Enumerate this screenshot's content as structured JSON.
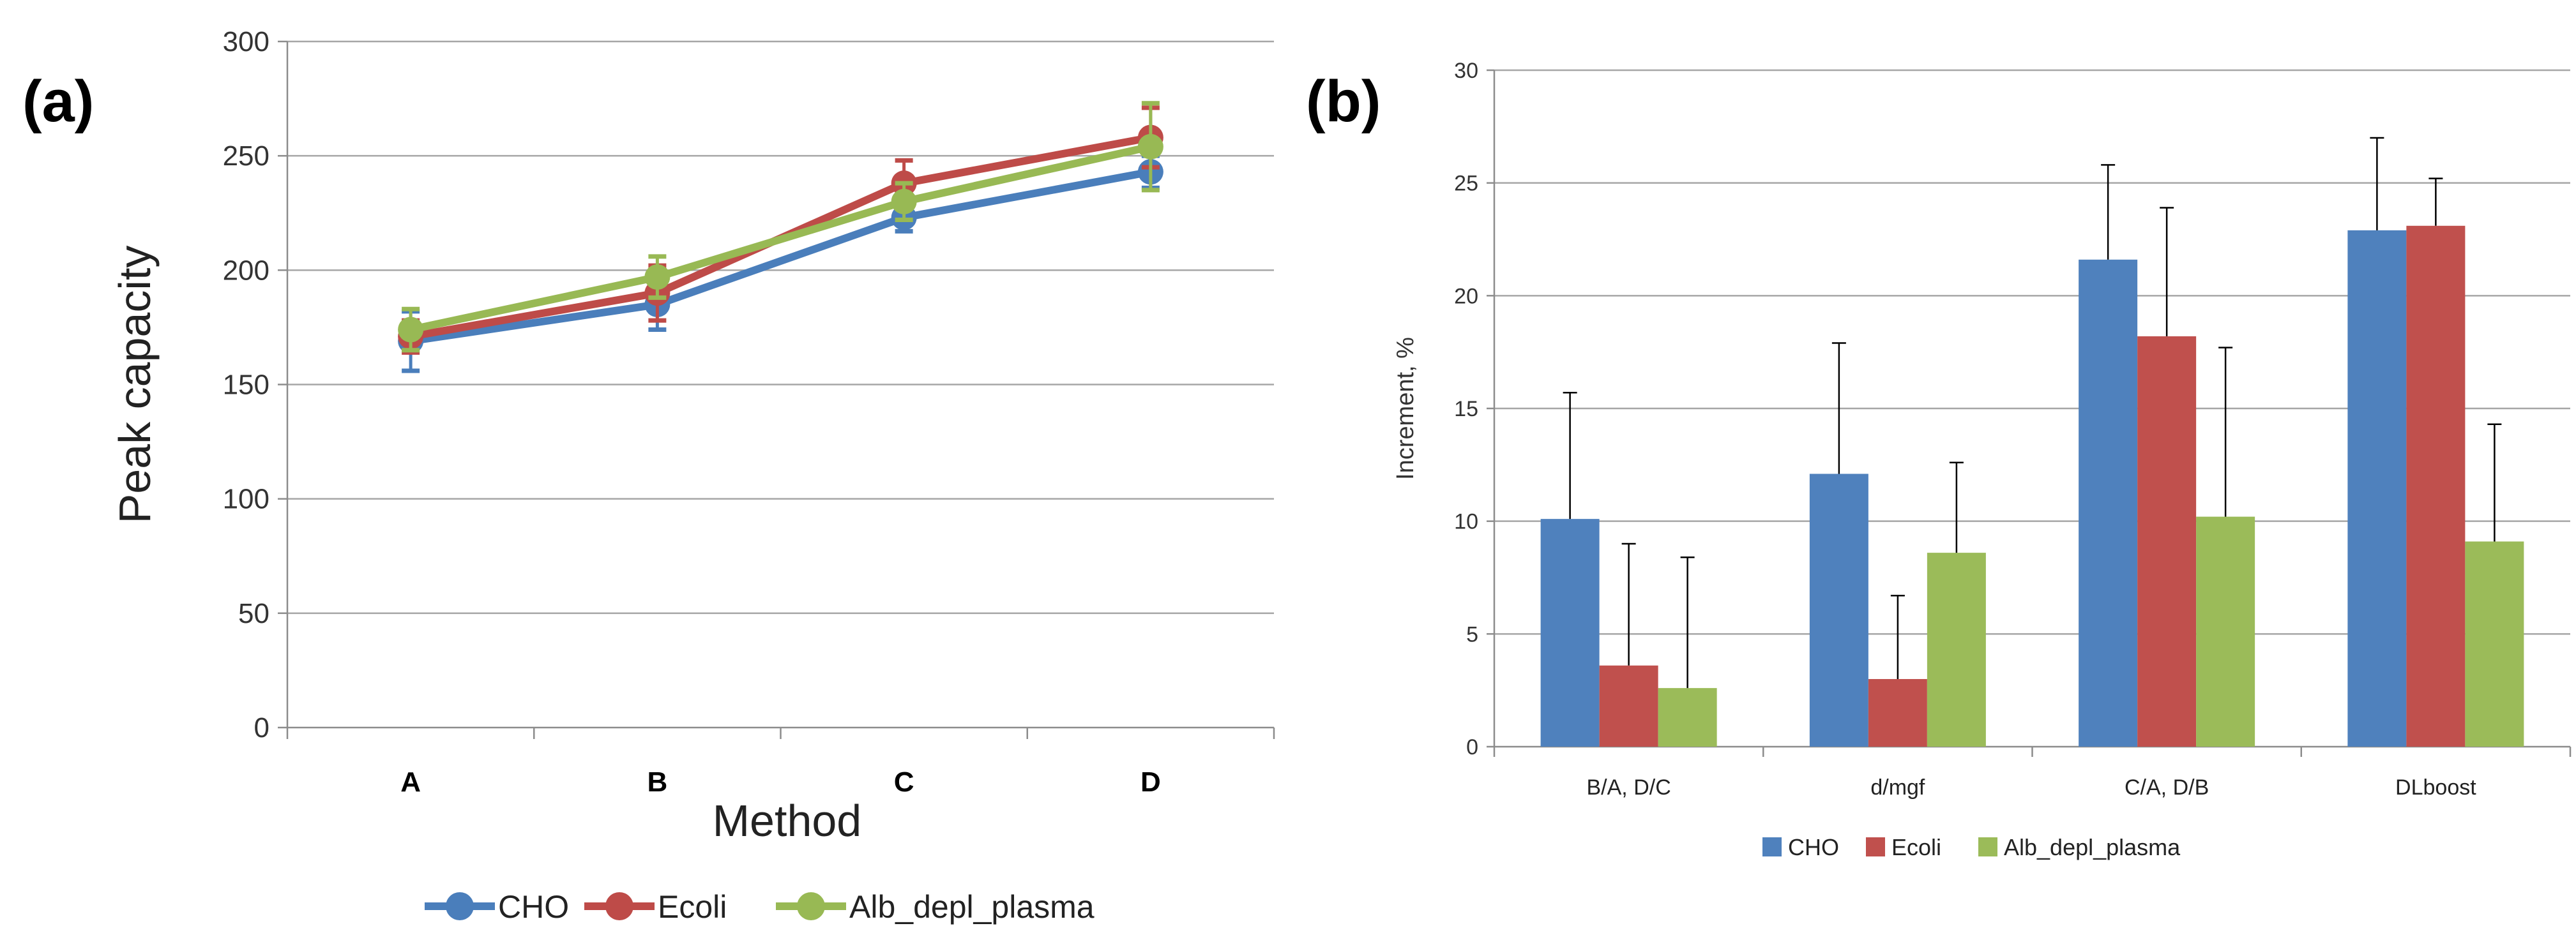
{
  "chart_data": [
    {
      "panel_label": "(a)",
      "type": "line",
      "categories": [
        "A",
        "B",
        "C",
        "D"
      ],
      "xlabel": "Method",
      "ylabel": "Peak capacity",
      "ylim": [
        0,
        300
      ],
      "yticks": [
        0,
        50,
        100,
        150,
        200,
        250,
        300
      ],
      "grid": true,
      "legend": "bottom",
      "series": [
        {
          "name": "CHO",
          "color": "#4a7ebb",
          "values": [
            169,
            185,
            223,
            243
          ],
          "errors": [
            13,
            11,
            6,
            7
          ]
        },
        {
          "name": "Ecoli",
          "color": "#be4b48",
          "values": [
            171,
            190,
            238,
            258
          ],
          "errors": [
            7,
            12,
            10,
            13
          ]
        },
        {
          "name": "Alb_depl_plasma",
          "color": "#98b954",
          "values": [
            174,
            197,
            230,
            254
          ],
          "errors": [
            9,
            9,
            8,
            19
          ]
        }
      ]
    },
    {
      "panel_label": "(b)",
      "type": "bar",
      "categories": [
        "B/A, D/C",
        "d/mgf",
        "C/A, D/B",
        "DLboost"
      ],
      "xlabel": "",
      "ylabel": "Increment, %",
      "ylim": [
        0,
        30
      ],
      "yticks": [
        0,
        5,
        10,
        15,
        20,
        25,
        30
      ],
      "grid": true,
      "legend": "bottom",
      "series": [
        {
          "name": "CHO",
          "color": "#4f81bd",
          "values": [
            10.1,
            12.1,
            21.6,
            22.9
          ],
          "errors": [
            5.6,
            5.8,
            4.2,
            4.1
          ]
        },
        {
          "name": "Ecoli",
          "color": "#c0504d",
          "values": [
            3.6,
            3.0,
            18.2,
            23.1
          ],
          "errors": [
            5.4,
            3.7,
            5.7,
            2.1
          ]
        },
        {
          "name": "Alb_depl_plasma",
          "color": "#9bbb59",
          "values": [
            2.6,
            8.6,
            10.2,
            9.1
          ],
          "errors": [
            5.8,
            4.0,
            7.5,
            5.2
          ]
        }
      ]
    }
  ]
}
